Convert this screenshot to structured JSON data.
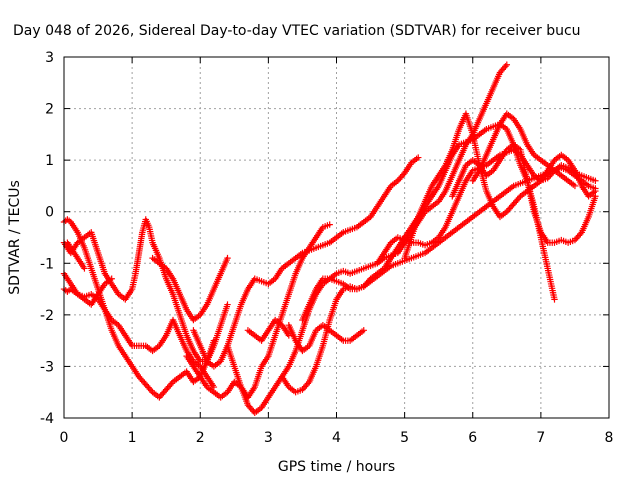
{
  "chart_data": {
    "type": "scatter",
    "title": "Day 048 of 2026, Sidereal Day-to-day VTEC variation (SDTVAR) for receiver bucu",
    "xlabel": "GPS time / hours",
    "ylabel": "SDTVAR / TECUs",
    "xlim": [
      0,
      8
    ],
    "ylim": [
      -4,
      3
    ],
    "xticks": [
      "0",
      "1",
      "2",
      "3",
      "4",
      "5",
      "6",
      "7",
      "8"
    ],
    "yticks": [
      "-4",
      "-3",
      "-2",
      "-1",
      "0",
      "1",
      "2",
      "3"
    ],
    "grid": true,
    "marker": "plus",
    "color": "#ff0000",
    "series": [
      {
        "x": [
          0.0,
          0.05,
          0.1,
          0.2,
          0.3,
          0.4,
          0.5,
          0.6,
          0.7,
          0.8,
          0.9,
          1.0,
          1.1,
          1.2,
          1.3,
          1.4,
          1.5,
          1.6,
          1.7,
          1.8,
          1.9,
          2.0,
          2.1,
          2.2
        ],
        "y": [
          -1.5,
          -1.55,
          -1.5,
          -1.6,
          -1.65,
          -1.6,
          -1.7,
          -1.9,
          -2.1,
          -2.2,
          -2.4,
          -2.6,
          -2.6,
          -2.6,
          -2.7,
          -2.6,
          -2.4,
          -2.1,
          -2.4,
          -2.7,
          -2.9,
          -3.0,
          -3.2,
          -3.4
        ]
      },
      {
        "x": [
          0.0,
          0.05,
          0.1,
          0.2,
          0.3,
          0.4,
          0.5,
          0.6,
          0.7,
          0.8,
          0.9,
          1.0,
          1.1,
          1.2,
          1.3,
          1.4,
          1.5,
          1.6,
          1.7,
          1.8,
          1.9,
          2.0,
          2.1,
          2.2
        ],
        "y": [
          -0.2,
          -0.15,
          -0.2,
          -0.4,
          -0.7,
          -1.1,
          -1.5,
          -1.9,
          -2.3,
          -2.6,
          -2.8,
          -3.0,
          -3.2,
          -3.35,
          -3.5,
          -3.6,
          -3.45,
          -3.3,
          -3.2,
          -3.1,
          -3.3,
          -3.2,
          -2.9,
          -2.5
        ]
      },
      {
        "x": [
          0.0,
          0.1,
          0.2,
          0.3,
          0.4,
          0.5,
          0.6,
          0.7,
          0.8,
          0.9,
          1.0,
          1.05,
          1.1,
          1.15,
          1.2,
          1.25,
          1.3,
          1.4,
          1.5,
          1.6,
          1.7,
          1.8,
          1.9,
          2.0,
          2.1,
          2.2,
          2.3,
          2.4
        ],
        "y": [
          -0.6,
          -0.8,
          -0.6,
          -0.5,
          -0.4,
          -0.8,
          -1.2,
          -1.4,
          -1.6,
          -1.7,
          -1.5,
          -1.2,
          -0.8,
          -0.4,
          -0.15,
          -0.3,
          -0.6,
          -0.9,
          -1.3,
          -1.6,
          -2.0,
          -2.4,
          -2.7,
          -2.9,
          -2.9,
          -2.6,
          -2.2,
          -1.8
        ]
      },
      {
        "x": [
          0.0,
          0.1,
          0.2,
          0.3,
          0.4,
          0.5,
          0.6,
          0.7
        ],
        "y": [
          -1.2,
          -1.4,
          -1.6,
          -1.7,
          -1.8,
          -1.6,
          -1.4,
          -1.3
        ]
      },
      {
        "x": [
          0.05,
          0.1,
          0.2,
          0.3
        ],
        "y": [
          -0.6,
          -0.7,
          -0.9,
          -1.1
        ]
      },
      {
        "x": [
          1.3,
          1.4,
          1.5,
          1.6,
          1.7,
          1.8,
          1.9,
          2.0,
          2.1,
          2.2,
          2.3,
          2.4
        ],
        "y": [
          -0.9,
          -1.0,
          -1.1,
          -1.3,
          -1.6,
          -1.9,
          -2.1,
          -2.0,
          -1.8,
          -1.5,
          -1.2,
          -0.9
        ]
      },
      {
        "x": [
          1.8,
          1.9,
          2.0,
          2.1,
          2.2,
          2.3,
          2.4,
          2.5,
          2.6,
          2.7,
          2.8,
          2.9,
          3.0,
          3.1,
          3.2,
          3.3,
          3.4,
          3.5,
          3.6,
          3.7,
          3.8,
          3.9
        ],
        "y": [
          -2.8,
          -3.0,
          -3.2,
          -3.4,
          -3.5,
          -3.6,
          -3.5,
          -3.3,
          -3.4,
          -3.6,
          -3.4,
          -3.0,
          -2.8,
          -2.4,
          -2.0,
          -1.6,
          -1.2,
          -0.9,
          -0.7,
          -0.5,
          -0.3,
          -0.25
        ]
      },
      {
        "x": [
          1.9,
          2.0,
          2.1,
          2.2,
          2.3,
          2.4,
          2.5,
          2.6,
          2.7,
          2.8,
          2.9,
          3.0,
          3.1,
          3.2,
          3.3,
          3.4,
          3.5,
          3.6,
          3.7,
          3.8,
          3.9,
          4.0,
          4.1,
          4.2,
          4.3,
          4.4,
          4.5,
          4.6,
          4.7,
          4.8,
          4.9,
          5.0,
          5.1,
          5.2
        ],
        "y": [
          -2.3,
          -2.6,
          -2.9,
          -3.0,
          -2.9,
          -2.6,
          -2.2,
          -1.8,
          -1.5,
          -1.3,
          -1.35,
          -1.4,
          -1.3,
          -1.1,
          -1.0,
          -0.9,
          -0.8,
          -0.75,
          -0.7,
          -0.65,
          -0.6,
          -0.5,
          -0.4,
          -0.35,
          -0.3,
          -0.2,
          -0.1,
          0.1,
          0.3,
          0.5,
          0.6,
          0.75,
          0.95,
          1.05
        ]
      },
      {
        "x": [
          2.4,
          2.5,
          2.6,
          2.7,
          2.8,
          2.9,
          3.0,
          3.1,
          3.2,
          3.3,
          3.4,
          3.5,
          3.6,
          3.7,
          3.8,
          3.9,
          4.0,
          4.1,
          4.2,
          4.3,
          4.4,
          4.5,
          4.6,
          4.7,
          4.8,
          4.9,
          5.0,
          5.1,
          5.2,
          5.3,
          5.4,
          5.5,
          5.6,
          5.7,
          5.8,
          5.9,
          6.0,
          6.1,
          6.2,
          6.3,
          6.4,
          6.5
        ],
        "y": [
          -2.6,
          -3.0,
          -3.4,
          -3.75,
          -3.9,
          -3.8,
          -3.6,
          -3.4,
          -3.2,
          -3.0,
          -2.7,
          -2.3,
          -1.9,
          -1.6,
          -1.4,
          -1.3,
          -1.2,
          -1.15,
          -1.2,
          -1.15,
          -1.1,
          -1.05,
          -1.0,
          -0.9,
          -0.85,
          -0.8,
          -0.6,
          -0.4,
          -0.2,
          0.0,
          0.1,
          0.2,
          0.4,
          0.7,
          1.0,
          1.3,
          1.5,
          1.8,
          2.1,
          2.4,
          2.7,
          2.85
        ]
      },
      {
        "x": [
          2.7,
          2.8,
          2.9,
          3.0,
          3.1,
          3.2,
          3.3
        ],
        "y": [
          -2.3,
          -2.4,
          -2.5,
          -2.3,
          -2.1,
          -2.2,
          -2.4
        ]
      },
      {
        "x": [
          3.3,
          3.4,
          3.5,
          3.6,
          3.7,
          3.8,
          3.9,
          4.0,
          4.1,
          4.2,
          4.3,
          4.4
        ],
        "y": [
          -2.2,
          -2.5,
          -2.7,
          -2.6,
          -2.3,
          -2.2,
          -2.3,
          -2.4,
          -2.5,
          -2.5,
          -2.4,
          -2.3
        ]
      },
      {
        "x": [
          3.2,
          3.3,
          3.4,
          3.5,
          3.6,
          3.7,
          3.8,
          3.9,
          4.0,
          4.1,
          4.2,
          4.3,
          4.4,
          4.5,
          4.6,
          4.7,
          4.8,
          4.9,
          5.0,
          5.1,
          5.2,
          5.3,
          5.4,
          5.5,
          5.6,
          5.7,
          5.8,
          5.9,
          6.0,
          6.1,
          6.2,
          6.3,
          6.4,
          6.5,
          6.6,
          6.7,
          6.8,
          6.9,
          7.0,
          7.1,
          7.2
        ],
        "y": [
          -3.2,
          -3.4,
          -3.5,
          -3.45,
          -3.3,
          -3.0,
          -2.6,
          -2.1,
          -1.7,
          -1.5,
          -1.45,
          -1.5,
          -1.45,
          -1.3,
          -1.2,
          -1.1,
          -0.9,
          -0.7,
          -0.5,
          -0.3,
          -0.1,
          0.1,
          0.3,
          0.5,
          0.8,
          1.1,
          1.3,
          1.35,
          1.4,
          1.5,
          1.6,
          1.65,
          1.7,
          1.6,
          1.3,
          0.9,
          0.6,
          0.1,
          -0.5,
          -1.1,
          -1.7
        ]
      },
      {
        "x": [
          3.5,
          3.6,
          3.7,
          3.8,
          3.9,
          4.0,
          4.1,
          4.2,
          4.3,
          4.4,
          4.5,
          4.6,
          4.7,
          4.8,
          4.9,
          5.0,
          5.1,
          5.2,
          5.3,
          5.4,
          5.5,
          5.6,
          5.7,
          5.8,
          5.9,
          6.0,
          6.1,
          6.2,
          6.3,
          6.4,
          6.5,
          6.6,
          6.7,
          6.8,
          6.9,
          7.0,
          7.1,
          7.2,
          7.3,
          7.4,
          7.5,
          7.6,
          7.7,
          7.8
        ],
        "y": [
          -2.1,
          -1.8,
          -1.5,
          -1.3,
          -1.3,
          -1.35,
          -1.4,
          -1.5,
          -1.5,
          -1.45,
          -1.35,
          -1.25,
          -1.15,
          -1.05,
          -1.0,
          -0.95,
          -0.9,
          -0.85,
          -0.8,
          -0.7,
          -0.6,
          -0.5,
          -0.4,
          -0.3,
          -0.2,
          -0.1,
          0.0,
          0.1,
          0.2,
          0.3,
          0.4,
          0.5,
          0.55,
          0.6,
          0.65,
          0.7,
          0.75,
          0.8,
          0.85,
          0.8,
          0.7,
          0.6,
          0.5,
          0.45
        ]
      },
      {
        "x": [
          4.6,
          4.7,
          4.8,
          4.9,
          5.0,
          5.1,
          5.2,
          5.3,
          5.4,
          5.5,
          5.6,
          5.7,
          5.8,
          5.9,
          6.0,
          6.1,
          6.2,
          6.3,
          6.4,
          6.5,
          6.6,
          6.7,
          6.8,
          6.9,
          7.0,
          7.1,
          7.2,
          7.3,
          7.4,
          7.5,
          7.6,
          7.7,
          7.8
        ],
        "y": [
          -1.0,
          -0.8,
          -0.6,
          -0.5,
          -0.55,
          -0.6,
          -0.6,
          -0.65,
          -0.6,
          -0.5,
          -0.3,
          0.0,
          0.3,
          0.6,
          0.8,
          0.85,
          0.9,
          1.0,
          1.1,
          1.15,
          1.2,
          1.1,
          0.9,
          0.7,
          0.6,
          0.65,
          0.8,
          0.9,
          0.85,
          0.75,
          0.7,
          0.65,
          0.6
        ]
      },
      {
        "x": [
          5.0,
          5.1,
          5.2,
          5.3,
          5.4,
          5.5,
          5.6,
          5.7,
          5.8,
          5.9,
          6.0,
          6.1,
          6.2,
          6.3,
          6.4,
          6.5,
          6.6,
          6.7,
          6.8,
          6.9,
          7.0,
          7.1,
          7.2,
          7.3,
          7.4,
          7.5,
          7.6,
          7.7,
          7.8
        ],
        "y": [
          -0.9,
          -0.5,
          -0.1,
          0.2,
          0.5,
          0.7,
          0.9,
          1.2,
          1.6,
          1.9,
          1.5,
          0.9,
          0.4,
          0.1,
          -0.1,
          0.0,
          0.15,
          0.3,
          0.4,
          0.5,
          0.6,
          0.8,
          1.0,
          1.1,
          1.0,
          0.8,
          0.5,
          0.3,
          0.4
        ]
      },
      {
        "x": [
          5.7,
          5.8,
          5.9,
          6.0,
          6.1,
          6.2,
          6.3,
          6.4,
          6.5,
          6.6,
          6.7,
          6.8,
          6.9,
          7.0,
          7.1,
          7.2,
          7.3,
          7.4,
          7.5,
          7.6,
          7.7,
          7.8
        ],
        "y": [
          0.3,
          0.6,
          0.9,
          1.0,
          0.9,
          0.7,
          0.8,
          1.0,
          1.2,
          1.3,
          1.2,
          0.6,
          0.0,
          -0.4,
          -0.6,
          -0.6,
          -0.55,
          -0.6,
          -0.55,
          -0.4,
          -0.1,
          0.3
        ]
      },
      {
        "x": [
          6.0,
          6.1,
          6.2,
          6.3,
          6.4,
          6.5,
          6.6,
          6.7,
          6.8,
          6.9,
          7.0,
          7.1,
          7.2,
          7.3,
          7.4,
          7.5
        ],
        "y": [
          0.6,
          0.8,
          1.1,
          1.4,
          1.7,
          1.9,
          1.8,
          1.6,
          1.3,
          1.1,
          1.0,
          0.9,
          0.8,
          0.7,
          0.6,
          0.5
        ]
      }
    ]
  }
}
